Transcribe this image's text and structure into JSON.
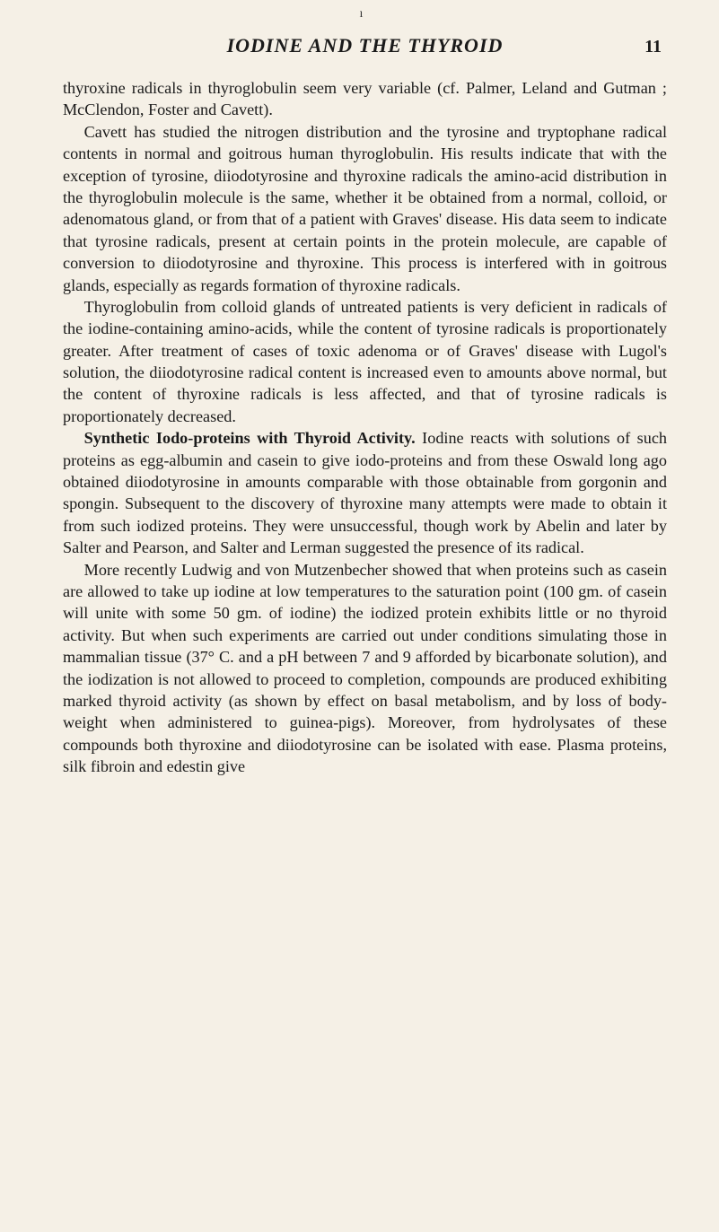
{
  "header": {
    "running_title": "IODINE AND THE THYROID",
    "page_number": "11"
  },
  "paragraphs": {
    "p1": "thyroxine radicals in thyroglobulin seem very variable (cf. Palmer, Leland and Gutman ; McClendon, Foster and Cavett).",
    "p2": "Cavett has studied the nitrogen distribution and the tyrosine and tryptophane radical contents in normal and goitrous human thyroglobulin. His results indicate that with the exception of tyrosine, diiodotyrosine and thyroxine radicals the amino-acid distribution in the thyroglobulin molecule is the same, whether it be obtained from a normal, colloid, or adenomatous gland, or from that of a patient with Graves' disease. His data seem to indicate that tyrosine radicals, present at certain points in the protein molecule, are capable of conversion to diiodotyrosine and thyroxine. This process is interfered with in goitrous glands, especially as regards formation of thyroxine radicals.",
    "p3": "Thyroglobulin from colloid glands of untreated patients is very deficient in radicals of the iodine-containing amino-acids, while the content of tyrosine radicals is proportionately greater. After treatment of cases of toxic adenoma or of Graves' disease with Lugol's solution, the diiodotyrosine radical content is increased even to amounts above normal, but the content of thyroxine radicals is less affected, and that of tyrosine radicals is proportionately decreased.",
    "p4_heading": "Synthetic Iodo-proteins with Thyroid Activity.",
    "p4_rest": " Iodine reacts with solutions of such proteins as egg-albumin and casein to give iodo-proteins and from these Oswald long ago obtained diiodo­tyrosine in amounts comparable with those obtainable from gorgonin and spongin. Subsequent to the discovery of thyroxine many attempts were made to obtain it from such iodized proteins. They were unsuccessful, though work by Abelin and later by Salter and Pearson, and Salter and Lerman suggested the presence of its radical.",
    "p5": "More recently Ludwig and von Mutzenbecher showed that when proteins such as casein are allowed to take up iodine at low tem­peratures to the saturation point (100 gm. of casein will unite with some 50 gm. of iodine) the iodized protein exhibits little or no thyroid activity. But when such experiments are carried out under conditions simulating those in mammalian tissue (37° C. and a pH between 7 and 9 afforded by bicarbonate solution), and the iodization is not allowed to proceed to completion, compounds are produced exhibiting marked thyroid activity (as shown by effect on basal metabolism, and by loss of body-weight when administered to guinea-pigs). Moreover, from hydrolysates of these compounds both thyroxine and diiodotyrosine can be isolated with ease. Plasma proteins, silk fibroin and edestin give"
  },
  "styling": {
    "page_bg": "#f5f0e6",
    "text_color": "#1a1a1a",
    "body_fontsize": 18.2,
    "line_height": 1.34,
    "running_title_fontsize": 22,
    "page_number_fontsize": 20
  }
}
